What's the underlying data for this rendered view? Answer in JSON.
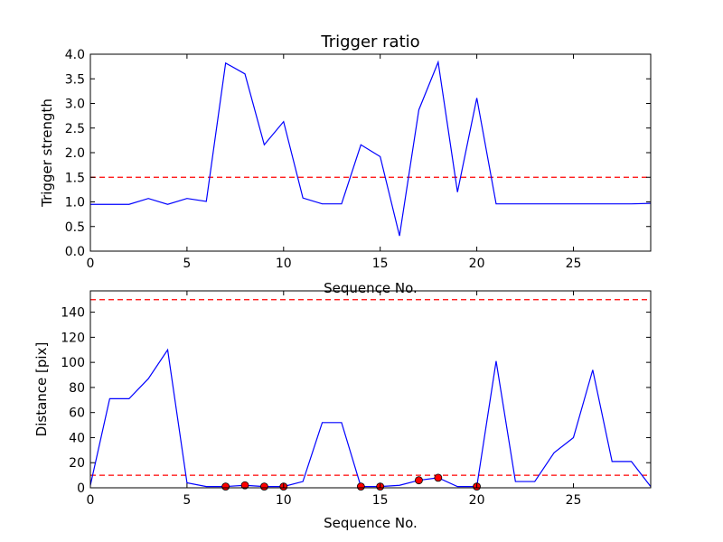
{
  "chart_data": [
    {
      "type": "line",
      "title": "Trigger ratio",
      "xlabel": "Sequence No.",
      "ylabel": "Trigger strength",
      "xlim": [
        0,
        29
      ],
      "ylim": [
        0,
        4.0
      ],
      "xticks": [
        0,
        5,
        10,
        15,
        20,
        25
      ],
      "yticks": [
        0.0,
        0.5,
        1.0,
        1.5,
        2.0,
        2.5,
        3.0,
        3.5,
        4.0
      ],
      "ytick_labels": [
        "0.0",
        "0.5",
        "1.0",
        "1.5",
        "2.0",
        "2.5",
        "3.0",
        "3.5",
        "4.0"
      ],
      "grid": false,
      "colors": {
        "series": "#0000ff",
        "threshold": "#ff0000"
      },
      "series": [
        {
          "x": [
            0,
            1,
            2,
            3,
            4,
            5,
            6,
            7,
            8,
            9,
            10,
            11,
            12,
            13,
            14,
            15,
            16,
            17,
            18,
            19,
            20,
            21,
            22,
            23,
            24,
            25,
            26,
            27,
            28,
            29
          ],
          "values": [
            0.95,
            0.95,
            0.95,
            1.07,
            0.95,
            1.07,
            1.01,
            3.82,
            3.6,
            2.16,
            2.63,
            1.08,
            0.96,
            0.96,
            2.16,
            1.92,
            0.31,
            2.87,
            3.84,
            1.2,
            3.11,
            0.96,
            0.96,
            0.96,
            0.96,
            0.96,
            0.96,
            0.96,
            0.96,
            0.97
          ]
        }
      ],
      "hlines": [
        1.5
      ]
    },
    {
      "type": "line",
      "title": "",
      "xlabel": "Sequence No.",
      "ylabel": "Distance [pix]",
      "xlim": [
        0,
        29
      ],
      "ylim": [
        0,
        157
      ],
      "xticks": [
        0,
        5,
        10,
        15,
        20,
        25
      ],
      "yticks": [
        0,
        20,
        40,
        60,
        80,
        100,
        120,
        140
      ],
      "ytick_labels": [
        "0",
        "20",
        "40",
        "60",
        "80",
        "100",
        "120",
        "140"
      ],
      "grid": false,
      "colors": {
        "series": "#0000ff",
        "threshold": "#ff0000",
        "markers": "#ff0000"
      },
      "series": [
        {
          "x": [
            0,
            1,
            2,
            3,
            4,
            5,
            6,
            7,
            8,
            9,
            10,
            11,
            12,
            13,
            14,
            15,
            16,
            17,
            18,
            19,
            20,
            21,
            22,
            23,
            24,
            25,
            26,
            27,
            28,
            29
          ],
          "values": [
            2,
            71,
            71,
            87,
            110,
            4,
            1,
            1,
            2,
            1,
            1,
            5,
            52,
            52,
            1,
            1,
            2,
            6,
            8,
            1,
            1,
            101,
            5,
            5,
            28,
            40,
            94,
            21,
            21,
            1
          ]
        }
      ],
      "markers": {
        "x": [
          7,
          8,
          9,
          10,
          14,
          15,
          17,
          18,
          20
        ],
        "values": [
          1,
          2,
          1,
          1,
          1,
          1,
          6,
          8,
          1
        ]
      },
      "hlines": [
        10,
        150
      ]
    }
  ]
}
